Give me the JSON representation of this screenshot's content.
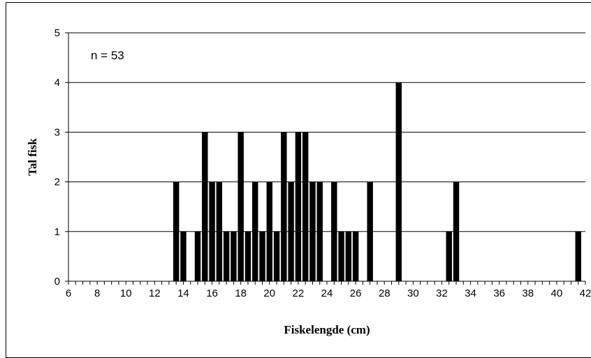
{
  "chart_data": {
    "type": "bar",
    "title": "",
    "xlabel": "Fiskelengde (cm)",
    "ylabel": "Tal fisk",
    "annotation": "n = 53",
    "bin_width": 0.5,
    "xlim": [
      6,
      42
    ],
    "ylim": [
      0,
      5
    ],
    "x_ticks": [
      6,
      8,
      10,
      12,
      14,
      16,
      18,
      20,
      22,
      24,
      26,
      28,
      30,
      32,
      34,
      36,
      38,
      40,
      42
    ],
    "x_tick_labels": [
      "6",
      "8",
      "10",
      "12",
      "14",
      "16",
      "18",
      "20",
      "22",
      "24",
      "26",
      "28",
      "30",
      "32",
      "34",
      "36",
      "38",
      "40",
      "42"
    ],
    "y_ticks": [
      0,
      1,
      2,
      3,
      4,
      5
    ],
    "y_tick_labels": [
      "0",
      "1",
      "2",
      "3",
      "4",
      "5"
    ],
    "grid": "horizontal",
    "legend": "none",
    "bar_color": "#000000",
    "x": [
      13.5,
      14.0,
      15.0,
      15.5,
      16.0,
      16.5,
      17.0,
      17.5,
      18.0,
      18.5,
      19.0,
      19.5,
      20.0,
      20.5,
      21.0,
      21.5,
      22.0,
      22.5,
      23.0,
      23.5,
      24.5,
      25.0,
      25.5,
      26.0,
      27.0,
      29.0,
      32.5,
      33.0,
      41.5
    ],
    "values": [
      2,
      1,
      1,
      3,
      2,
      2,
      1,
      1,
      3,
      1,
      2,
      1,
      2,
      1,
      3,
      2,
      3,
      3,
      2,
      2,
      2,
      1,
      1,
      1,
      2,
      4,
      1,
      2,
      1
    ]
  }
}
